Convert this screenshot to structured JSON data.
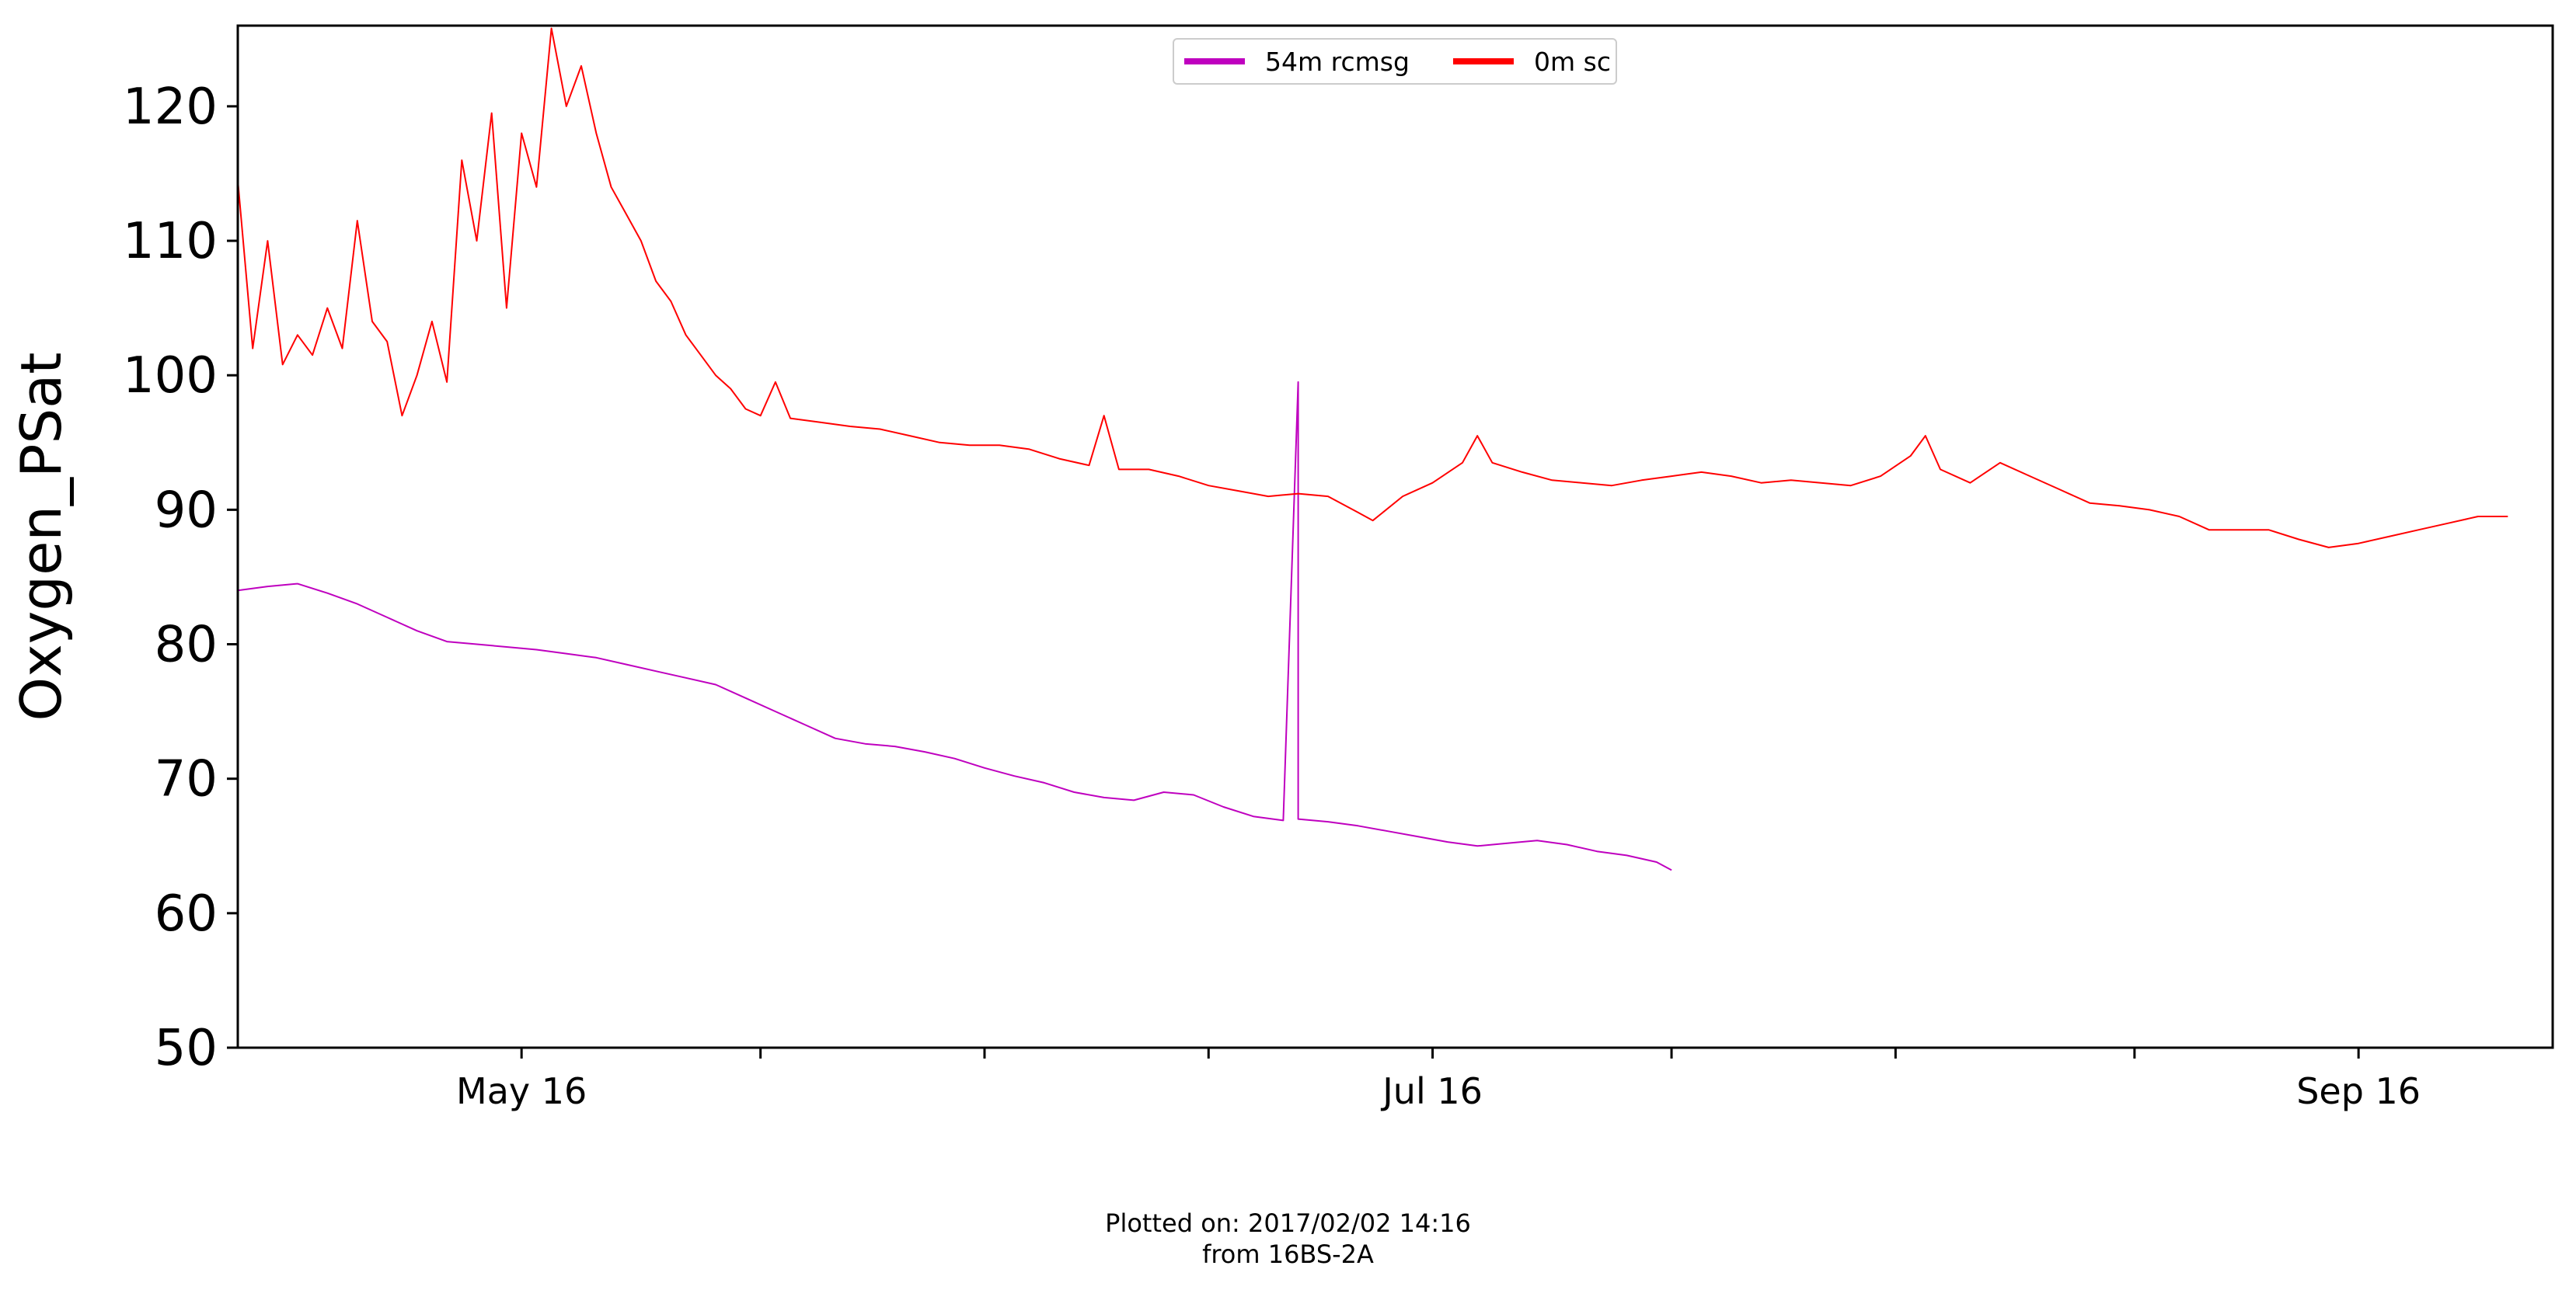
{
  "chart_data": {
    "type": "line",
    "title": "",
    "xlabel": "",
    "ylabel": "Oxygen_PSat",
    "xlim": [
      "2017-04-27",
      "2017-09-29"
    ],
    "ylim": [
      50,
      126
    ],
    "yticks": [
      50,
      60,
      70,
      80,
      90,
      100,
      110,
      120
    ],
    "xticks": [
      {
        "date": "2017-05-16",
        "label": "May 16"
      },
      {
        "date": "2017-06-01",
        "label": ""
      },
      {
        "date": "2017-06-16",
        "label": ""
      },
      {
        "date": "2017-07-01",
        "label": ""
      },
      {
        "date": "2017-07-16",
        "label": "Jul 16"
      },
      {
        "date": "2017-08-01",
        "label": ""
      },
      {
        "date": "2017-08-16",
        "label": ""
      },
      {
        "date": "2017-09-01",
        "label": ""
      },
      {
        "date": "2017-09-16",
        "label": "Sep 16"
      },
      {
        "date": "2017-10-01",
        "label": ""
      }
    ],
    "grid": false,
    "legend": "top-center",
    "series": [
      {
        "name": "54m rcmsg",
        "color": "#bf00bf",
        "points": [
          [
            "2017-04-27",
            84.0
          ],
          [
            "2017-04-29",
            84.3
          ],
          [
            "2017-05-01",
            84.5
          ],
          [
            "2017-05-03",
            83.8
          ],
          [
            "2017-05-05",
            83.0
          ],
          [
            "2017-05-07",
            82.0
          ],
          [
            "2017-05-09",
            81.0
          ],
          [
            "2017-05-11",
            80.2
          ],
          [
            "2017-05-13",
            80.0
          ],
          [
            "2017-05-15",
            79.8
          ],
          [
            "2017-05-17",
            79.6
          ],
          [
            "2017-05-19",
            79.3
          ],
          [
            "2017-05-21",
            79.0
          ],
          [
            "2017-05-23",
            78.5
          ],
          [
            "2017-05-25",
            78.0
          ],
          [
            "2017-05-27",
            77.5
          ],
          [
            "2017-05-29",
            77.0
          ],
          [
            "2017-05-31",
            76.0
          ],
          [
            "2017-06-02",
            75.0
          ],
          [
            "2017-06-04",
            74.0
          ],
          [
            "2017-06-06",
            73.0
          ],
          [
            "2017-06-08",
            72.6
          ],
          [
            "2017-06-10",
            72.4
          ],
          [
            "2017-06-12",
            72.0
          ],
          [
            "2017-06-14",
            71.5
          ],
          [
            "2017-06-16",
            70.8
          ],
          [
            "2017-06-18",
            70.2
          ],
          [
            "2017-06-20",
            69.7
          ],
          [
            "2017-06-22",
            69.0
          ],
          [
            "2017-06-24",
            68.6
          ],
          [
            "2017-06-26",
            68.4
          ],
          [
            "2017-06-28",
            69.0
          ],
          [
            "2017-06-30",
            68.8
          ],
          [
            "2017-07-02",
            67.9
          ],
          [
            "2017-07-04",
            67.2
          ],
          [
            "2017-07-06",
            66.9
          ],
          [
            "2017-07-07",
            99.5
          ],
          [
            "2017-07-07",
            67.0
          ],
          [
            "2017-07-09",
            66.8
          ],
          [
            "2017-07-11",
            66.5
          ],
          [
            "2017-07-13",
            66.1
          ],
          [
            "2017-07-15",
            65.7
          ],
          [
            "2017-07-17",
            65.3
          ],
          [
            "2017-07-19",
            65.0
          ],
          [
            "2017-07-21",
            65.2
          ],
          [
            "2017-07-23",
            65.4
          ],
          [
            "2017-07-25",
            65.1
          ],
          [
            "2017-07-27",
            64.6
          ],
          [
            "2017-07-29",
            64.3
          ],
          [
            "2017-07-31",
            63.8
          ],
          [
            "2017-08-01",
            63.2
          ]
        ]
      },
      {
        "name": "0m sc",
        "color": "#ff0000",
        "points": [
          [
            "2017-04-27",
            106.5
          ],
          [
            "2017-04-27",
            114.5
          ],
          [
            "2017-04-28",
            102.0
          ],
          [
            "2017-04-29",
            110.0
          ],
          [
            "2017-04-30",
            100.8
          ],
          [
            "2017-05-01",
            103.0
          ],
          [
            "2017-05-02",
            101.5
          ],
          [
            "2017-05-03",
            105.0
          ],
          [
            "2017-05-04",
            102.0
          ],
          [
            "2017-05-05",
            111.5
          ],
          [
            "2017-05-06",
            104.0
          ],
          [
            "2017-05-07",
            102.5
          ],
          [
            "2017-05-08",
            97.0
          ],
          [
            "2017-05-09",
            100.0
          ],
          [
            "2017-05-10",
            104.0
          ],
          [
            "2017-05-11",
            99.5
          ],
          [
            "2017-05-12",
            116.0
          ],
          [
            "2017-05-13",
            110.0
          ],
          [
            "2017-05-14",
            119.5
          ],
          [
            "2017-05-15",
            105.0
          ],
          [
            "2017-05-16",
            118.0
          ],
          [
            "2017-05-17",
            114.0
          ],
          [
            "2017-05-18",
            125.8
          ],
          [
            "2017-05-19",
            120.0
          ],
          [
            "2017-05-20",
            123.0
          ],
          [
            "2017-05-21",
            118.0
          ],
          [
            "2017-05-22",
            114.0
          ],
          [
            "2017-05-23",
            112.0
          ],
          [
            "2017-05-24",
            110.0
          ],
          [
            "2017-05-25",
            107.0
          ],
          [
            "2017-05-26",
            105.5
          ],
          [
            "2017-05-27",
            103.0
          ],
          [
            "2017-05-28",
            101.5
          ],
          [
            "2017-05-29",
            100.0
          ],
          [
            "2017-05-30",
            99.0
          ],
          [
            "2017-05-31",
            97.5
          ],
          [
            "2017-06-01",
            97.0
          ],
          [
            "2017-06-02",
            99.5
          ],
          [
            "2017-06-03",
            96.8
          ],
          [
            "2017-06-05",
            96.5
          ],
          [
            "2017-06-07",
            96.2
          ],
          [
            "2017-06-09",
            96.0
          ],
          [
            "2017-06-11",
            95.5
          ],
          [
            "2017-06-13",
            95.0
          ],
          [
            "2017-06-15",
            94.8
          ],
          [
            "2017-06-17",
            94.8
          ],
          [
            "2017-06-19",
            94.5
          ],
          [
            "2017-06-21",
            93.8
          ],
          [
            "2017-06-23",
            93.3
          ],
          [
            "2017-06-24",
            97.0
          ],
          [
            "2017-06-25",
            93.0
          ],
          [
            "2017-06-27",
            93.0
          ],
          [
            "2017-06-29",
            92.5
          ],
          [
            "2017-07-01",
            91.8
          ],
          [
            "2017-07-03",
            91.4
          ],
          [
            "2017-07-05",
            91.0
          ],
          [
            "2017-07-07",
            91.2
          ],
          [
            "2017-07-09",
            91.0
          ],
          [
            "2017-07-11",
            89.8
          ],
          [
            "2017-07-12",
            89.2
          ],
          [
            "2017-07-14",
            91.0
          ],
          [
            "2017-07-16",
            92.0
          ],
          [
            "2017-07-18",
            93.5
          ],
          [
            "2017-07-19",
            95.5
          ],
          [
            "2017-07-20",
            93.5
          ],
          [
            "2017-07-22",
            92.8
          ],
          [
            "2017-07-24",
            92.2
          ],
          [
            "2017-07-26",
            92.0
          ],
          [
            "2017-07-28",
            91.8
          ],
          [
            "2017-07-30",
            92.2
          ],
          [
            "2017-08-01",
            92.5
          ],
          [
            "2017-08-03",
            92.8
          ],
          [
            "2017-08-05",
            92.5
          ],
          [
            "2017-08-07",
            92.0
          ],
          [
            "2017-08-09",
            92.2
          ],
          [
            "2017-08-11",
            92.0
          ],
          [
            "2017-08-13",
            91.8
          ],
          [
            "2017-08-15",
            92.5
          ],
          [
            "2017-08-17",
            94.0
          ],
          [
            "2017-08-18",
            95.5
          ],
          [
            "2017-08-19",
            93.0
          ],
          [
            "2017-08-21",
            92.0
          ],
          [
            "2017-08-23",
            93.5
          ],
          [
            "2017-08-25",
            92.5
          ],
          [
            "2017-08-27",
            91.5
          ],
          [
            "2017-08-29",
            90.5
          ],
          [
            "2017-08-31",
            90.3
          ],
          [
            "2017-09-02",
            90.0
          ],
          [
            "2017-09-04",
            89.5
          ],
          [
            "2017-09-06",
            88.5
          ],
          [
            "2017-09-08",
            88.5
          ],
          [
            "2017-09-10",
            88.5
          ],
          [
            "2017-09-12",
            87.8
          ],
          [
            "2017-09-14",
            87.2
          ],
          [
            "2017-09-16",
            87.5
          ],
          [
            "2017-09-18",
            88.0
          ],
          [
            "2017-09-20",
            88.5
          ],
          [
            "2017-09-22",
            89.0
          ],
          [
            "2017-09-24",
            89.5
          ],
          [
            "2017-09-26",
            89.5
          ]
        ]
      }
    ]
  },
  "footer": {
    "line1": "Plotted on: 2017/02/02 14:16",
    "line2": "from 16BS-2A"
  }
}
